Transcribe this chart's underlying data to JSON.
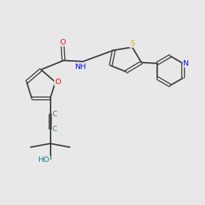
{
  "background_color": "#e8e8e8",
  "atom_colors": {
    "C": "#000000",
    "N": "#0000ff",
    "O": "#ff0000",
    "S": "#ccaa00",
    "H": "#000000",
    "O_teal": "#008080"
  },
  "bond_color": "#404040",
  "font_size": 7
}
